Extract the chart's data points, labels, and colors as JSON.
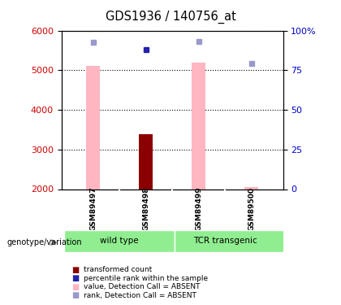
{
  "title": "GDS1936 / 140756_at",
  "samples": [
    "GSM89497",
    "GSM89498",
    "GSM89499",
    "GSM89500"
  ],
  "ylim_left": [
    2000,
    6000
  ],
  "ylim_right": [
    0,
    100
  ],
  "yticks_left": [
    2000,
    3000,
    4000,
    5000,
    6000
  ],
  "ytick_labels_right": [
    "0",
    "25",
    "50",
    "75",
    "100%"
  ],
  "bar_values": [
    null,
    3380,
    null,
    null
  ],
  "bar_color": "#8B0000",
  "pink_bar_values": [
    5100,
    null,
    5180,
    null
  ],
  "pink_bar_small_values": [
    null,
    null,
    null,
    2050
  ],
  "pink_bar_color": "#FFB6C1",
  "blue_square_values": [
    5700,
    5520,
    5720,
    5160
  ],
  "blue_square_colors": [
    "#9999cc",
    "#2222aa",
    "#9999cc",
    "#9999cc"
  ],
  "x_positions": [
    0,
    1,
    2,
    3
  ],
  "bar_width": 0.25,
  "left_color": "#cc0000",
  "right_color": "#0000cc",
  "background_color": "#cccccc",
  "group_color": "#90ee90",
  "legend_items": [
    {
      "color": "#8B0000",
      "label": "transformed count"
    },
    {
      "color": "#2222aa",
      "label": "percentile rank within the sample"
    },
    {
      "color": "#FFB6C1",
      "label": "value, Detection Call = ABSENT"
    },
    {
      "color": "#9999cc",
      "label": "rank, Detection Call = ABSENT"
    }
  ]
}
